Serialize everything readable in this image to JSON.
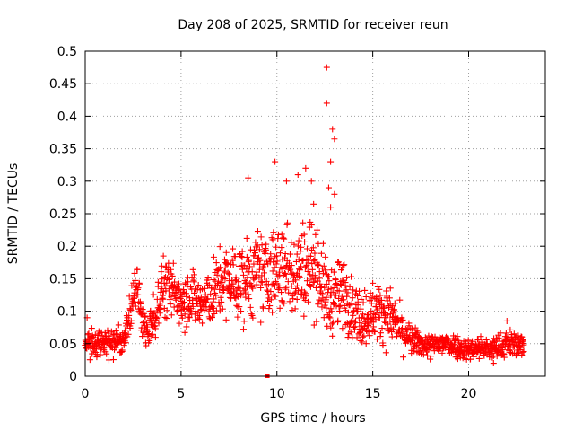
{
  "chart_data": {
    "type": "scatter",
    "title": "Day 208 of 2025, SRMTID for receiver reun",
    "xlabel": "GPS time / hours",
    "ylabel": "SRMTID / TECUs",
    "xlim": [
      0,
      24
    ],
    "ylim": [
      0,
      0.5
    ],
    "xticks": [
      0,
      5,
      10,
      15,
      20
    ],
    "xtick_labels": [
      "0",
      "5",
      "10",
      "15",
      "20"
    ],
    "yticks": [
      0,
      0.05,
      0.1,
      0.15,
      0.2,
      0.25,
      0.3,
      0.35,
      0.4,
      0.45,
      0.5
    ],
    "ytick_labels": [
      "0",
      "0.05",
      "0.1",
      "0.15",
      "0.2",
      "0.25",
      "0.3",
      "0.35",
      "0.4",
      "0.45",
      "0.5"
    ],
    "grid": true,
    "marker": "plus",
    "color": "#ff0000",
    "series": [
      {
        "name": "SRMTID",
        "envelope_x": [
          0,
          0.5,
          1,
          1.5,
          2,
          2.4,
          2.7,
          3,
          3.3,
          3.6,
          4,
          4.5,
          5,
          5.5,
          6,
          6.5,
          7,
          7.5,
          8,
          8.5,
          9,
          9.5,
          10,
          10.5,
          11,
          11.5,
          12,
          12.3,
          12.6,
          13,
          13.5,
          14,
          14.5,
          15,
          15.5,
          16,
          16.5,
          17,
          17.5,
          18,
          18.5,
          19,
          19.5,
          20,
          20.5,
          21,
          21.5,
          22,
          22.5,
          22.9
        ],
        "envelope_center": [
          0.055,
          0.05,
          0.055,
          0.05,
          0.055,
          0.1,
          0.14,
          0.08,
          0.06,
          0.09,
          0.14,
          0.13,
          0.12,
          0.125,
          0.11,
          0.12,
          0.14,
          0.15,
          0.14,
          0.15,
          0.16,
          0.155,
          0.16,
          0.17,
          0.16,
          0.17,
          0.18,
          0.15,
          0.12,
          0.12,
          0.13,
          0.1,
          0.09,
          0.1,
          0.1,
          0.09,
          0.07,
          0.055,
          0.05,
          0.045,
          0.05,
          0.05,
          0.045,
          0.04,
          0.045,
          0.04,
          0.045,
          0.05,
          0.05,
          0.045
        ],
        "envelope_spread": [
          0.025,
          0.025,
          0.025,
          0.025,
          0.025,
          0.04,
          0.05,
          0.03,
          0.025,
          0.04,
          0.05,
          0.05,
          0.05,
          0.05,
          0.05,
          0.05,
          0.06,
          0.06,
          0.07,
          0.07,
          0.07,
          0.07,
          0.08,
          0.08,
          0.08,
          0.08,
          0.09,
          0.07,
          0.06,
          0.06,
          0.06,
          0.05,
          0.05,
          0.05,
          0.05,
          0.045,
          0.035,
          0.025,
          0.02,
          0.02,
          0.025,
          0.02,
          0.02,
          0.02,
          0.02,
          0.02,
          0.02,
          0.025,
          0.02,
          0.02
        ],
        "peak_points": [
          {
            "x": 12.6,
            "y": 0.475
          },
          {
            "x": 12.6,
            "y": 0.42
          },
          {
            "x": 12.9,
            "y": 0.38
          },
          {
            "x": 13.0,
            "y": 0.365
          },
          {
            "x": 12.8,
            "y": 0.33
          },
          {
            "x": 9.9,
            "y": 0.33
          },
          {
            "x": 11.5,
            "y": 0.32
          },
          {
            "x": 8.5,
            "y": 0.305
          },
          {
            "x": 11.1,
            "y": 0.31
          },
          {
            "x": 12.7,
            "y": 0.29
          },
          {
            "x": 13.0,
            "y": 0.28
          },
          {
            "x": 12.8,
            "y": 0.26
          },
          {
            "x": 10.5,
            "y": 0.3
          },
          {
            "x": 11.8,
            "y": 0.3
          },
          {
            "x": 0.1,
            "y": 0.09
          },
          {
            "x": 22.0,
            "y": 0.085
          },
          {
            "x": 21.3,
            "y": 0.02
          },
          {
            "x": 9.5,
            "y": 0.0
          }
        ]
      }
    ]
  }
}
